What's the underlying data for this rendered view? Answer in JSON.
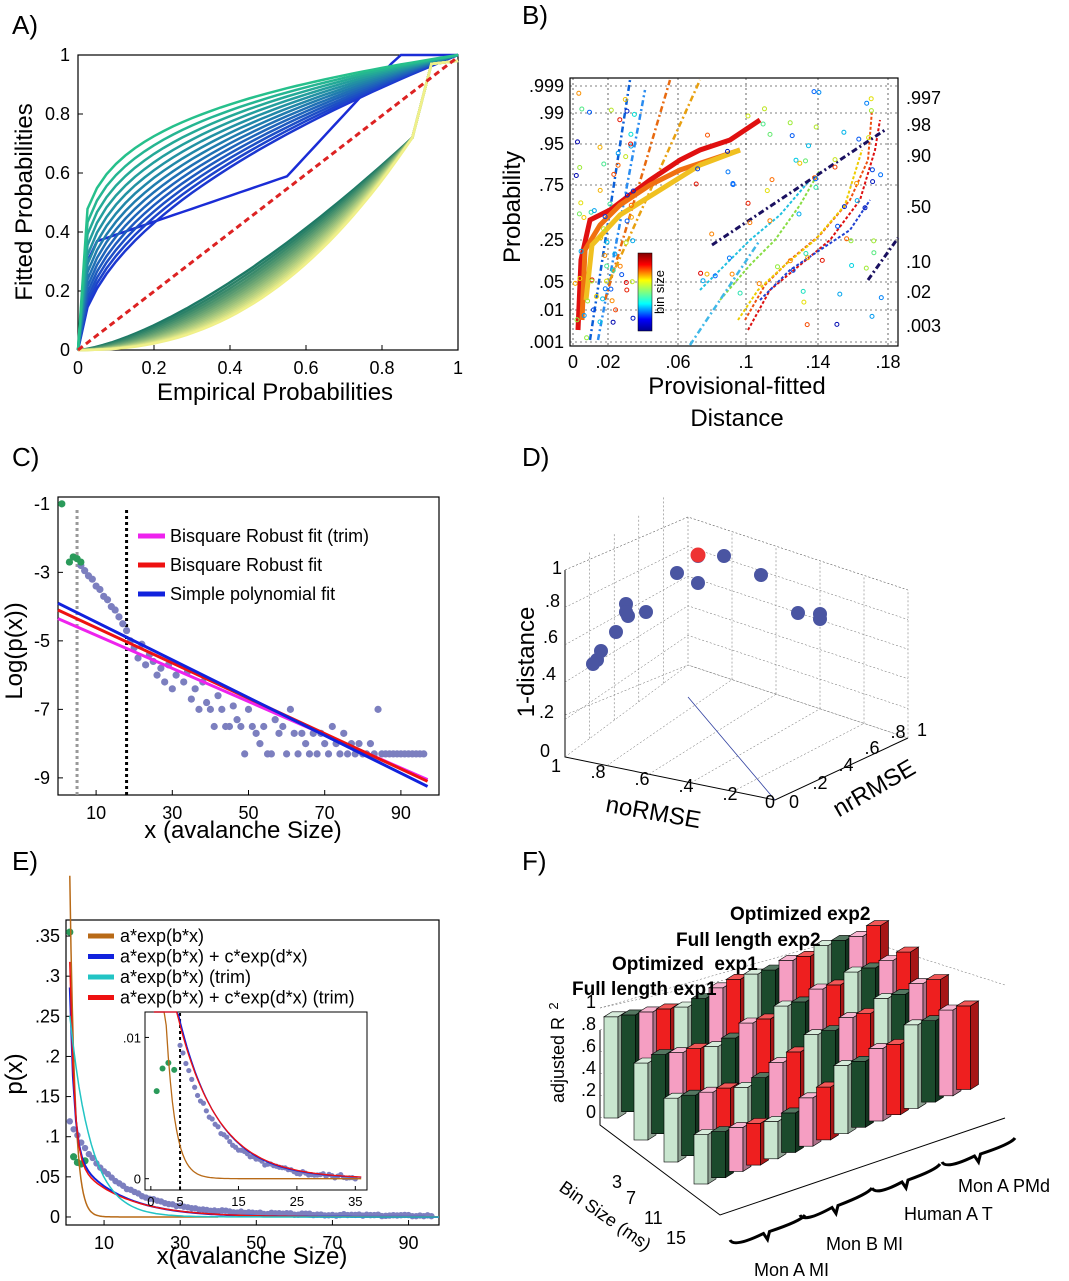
{
  "panels": {
    "A": {
      "label": "A)",
      "chart_data": {
        "type": "line",
        "xlabel": "Empirical Probabilities",
        "ylabel": "Fitted Probabilities",
        "xlim": [
          0,
          1
        ],
        "ylim": [
          0,
          1
        ],
        "xticks": [
          "0",
          "0.2",
          "0.4",
          "0.6",
          "0.8",
          "1"
        ],
        "yticks": [
          "0",
          "0.2",
          "0.4",
          "0.6",
          "0.8",
          "1"
        ],
        "reference_line": "y = x (red dashed)"
      }
    },
    "B": {
      "label": "B)",
      "chart_data": {
        "type": "scatter",
        "xlabel": "Provisional-fitted Distance",
        "xlabel_lines": [
          "Provisional-fitted",
          "Distance"
        ],
        "ylabel": "Probability",
        "xticks": [
          "0",
          ".02",
          ".06",
          ".1",
          ".14",
          ".18"
        ],
        "yticks_left": [
          ".001",
          ".01",
          ".05",
          ".25",
          ".75",
          ".95",
          ".99",
          ".999"
        ],
        "yticks_right": [
          ".003",
          ".02",
          ".10",
          ".50",
          ".90",
          ".98",
          ".997"
        ],
        "colorbar_label": "bin size"
      }
    },
    "C": {
      "label": "C)",
      "chart_data": {
        "type": "scatter",
        "xlabel": "x (avalanche Size)",
        "ylabel": "Log(p(x))",
        "xlim": [
          0,
          100
        ],
        "ylim": [
          -9.5,
          -0.8
        ],
        "xticks": [
          "10",
          "30",
          "50",
          "70",
          "90"
        ],
        "yticks": [
          "-1",
          "-3",
          "-5",
          "-7",
          "-9"
        ],
        "legend": [
          {
            "label": "Bisquare Robust fit (trim)",
            "color": "#ee22ee"
          },
          {
            "label": "Bisquare Robust fit",
            "color": "#ee1111"
          },
          {
            "label": "Simple polynomial fit",
            "color": "#1122dd"
          }
        ],
        "fits": [
          {
            "name": "Bisquare Robust fit (trim)",
            "x": [
              0,
              97
            ],
            "y": [
              -4.35,
              -9.05
            ]
          },
          {
            "name": "Bisquare Robust fit",
            "x": [
              0,
              97
            ],
            "y": [
              -4.1,
              -9.1
            ]
          },
          {
            "name": "Simple polynomial fit",
            "x": [
              0,
              97
            ],
            "y": [
              -3.9,
              -9.25
            ]
          }
        ],
        "vlines": [
          {
            "x": 5,
            "color": "#999999"
          },
          {
            "x": 18,
            "color": "#000000"
          }
        ],
        "trimmed_points": [
          [
            1,
            -1.0
          ],
          [
            3,
            -2.7
          ],
          [
            4,
            -2.55
          ],
          [
            5,
            -2.6
          ],
          [
            6,
            -2.7
          ]
        ],
        "points": [
          [
            6,
            -2.8
          ],
          [
            7,
            -2.95
          ],
          [
            8,
            -3.1
          ],
          [
            9,
            -3.2
          ],
          [
            10,
            -3.4
          ],
          [
            11,
            -3.5
          ],
          [
            12,
            -3.7
          ],
          [
            13,
            -3.8
          ],
          [
            14,
            -4.0
          ],
          [
            15,
            -4.1
          ],
          [
            16,
            -4.3
          ],
          [
            17,
            -4.5
          ],
          [
            18,
            -4.7
          ],
          [
            19,
            -5.0
          ],
          [
            20,
            -5.2
          ],
          [
            21,
            -5.5
          ],
          [
            22,
            -5.1
          ],
          [
            23,
            -5.7
          ],
          [
            24,
            -5.4
          ],
          [
            25,
            -5.6
          ],
          [
            26,
            -6.0
          ],
          [
            27,
            -5.8
          ],
          [
            28,
            -6.2
          ],
          [
            29,
            -5.7
          ],
          [
            30,
            -6.4
          ],
          [
            31,
            -6.0
          ],
          [
            33,
            -6.2
          ],
          [
            34,
            -5.9
          ],
          [
            35,
            -6.7
          ],
          [
            36,
            -6.4
          ],
          [
            37,
            -7.0
          ],
          [
            38,
            -6.2
          ],
          [
            39,
            -6.8
          ],
          [
            40,
            -7.0
          ],
          [
            41,
            -7.5
          ],
          [
            42,
            -6.6
          ],
          [
            43,
            -7.0
          ],
          [
            44,
            -7.5
          ],
          [
            45,
            -7.5
          ],
          [
            46,
            -6.9
          ],
          [
            47,
            -7.3
          ],
          [
            48,
            -7.5
          ],
          [
            49,
            -8.3
          ],
          [
            50,
            -7.0
          ],
          [
            51,
            -7.5
          ],
          [
            52,
            -7.7
          ],
          [
            53,
            -8.0
          ],
          [
            54,
            -7.5
          ],
          [
            55,
            -8.3
          ],
          [
            56,
            -8.3
          ],
          [
            57,
            -7.3
          ],
          [
            58,
            -7.7
          ],
          [
            59,
            -7.5
          ],
          [
            60,
            -8.3
          ],
          [
            61,
            -7.0
          ],
          [
            62,
            -7.7
          ],
          [
            63,
            -8.3
          ],
          [
            64,
            -7.7
          ],
          [
            65,
            -8.0
          ],
          [
            66,
            -8.3
          ],
          [
            67,
            -7.7
          ],
          [
            68,
            -8.3
          ],
          [
            69,
            -7.7
          ],
          [
            70,
            -8.0
          ],
          [
            71,
            -8.3
          ],
          [
            72,
            -7.5
          ],
          [
            73,
            -8.0
          ],
          [
            74,
            -8.3
          ],
          [
            75,
            -7.7
          ],
          [
            76,
            -8.3
          ],
          [
            77,
            -8.0
          ],
          [
            78,
            -8.3
          ],
          [
            79,
            -8.0
          ],
          [
            80,
            -8.3
          ],
          [
            81,
            -8.3
          ],
          [
            82,
            -8.0
          ],
          [
            83,
            -8.3
          ],
          [
            84,
            -7.0
          ],
          [
            85,
            -8.3
          ],
          [
            86,
            -8.3
          ],
          [
            87,
            -8.3
          ],
          [
            88,
            -8.3
          ],
          [
            89,
            -8.3
          ],
          [
            90,
            -8.3
          ],
          [
            91,
            -8.3
          ],
          [
            92,
            -8.3
          ],
          [
            93,
            -8.3
          ],
          [
            94,
            -8.3
          ],
          [
            95,
            -8.3
          ],
          [
            96,
            -8.3
          ]
        ]
      }
    },
    "D": {
      "label": "D)",
      "chart_data": {
        "type": "scatter",
        "zlabel": "1-distance",
        "xlabel": "noRMSE",
        "ylabel": "nrRMSE",
        "zticks": [
          "0",
          ".2",
          ".4",
          ".6",
          ".8",
          "1"
        ],
        "xticks": [
          "1",
          ".8",
          ".6",
          ".4",
          ".2",
          "0"
        ],
        "yticks": [
          "0",
          ".2",
          ".4",
          ".6",
          ".8",
          "1"
        ],
        "highlight_color": "#ee3333",
        "point_color": "#4a55a2"
      }
    },
    "E": {
      "label": "E)",
      "chart_data": {
        "type": "line",
        "xlabel": "x(avalanche Size)",
        "ylabel": "p(x)",
        "xlim": [
          0,
          98
        ],
        "ylim": [
          -0.01,
          0.37
        ],
        "xticks": [
          "10",
          "30",
          "50",
          "70",
          "90"
        ],
        "yticks": [
          "0",
          ".05",
          ".1",
          ".15",
          ".2",
          ".25",
          ".3",
          ".35"
        ],
        "legend": [
          {
            "label": "a*exp(b*x)",
            "color": "#b86a17"
          },
          {
            "label": "a*exp(b*x) + c*exp(d*x)",
            "color": "#1122dd"
          },
          {
            "label": "a*exp(b*x) (trim)",
            "color": "#22c4c4"
          },
          {
            "label": "a*exp(b*x) + c*exp(d*x) (trim)",
            "color": "#ee1111"
          }
        ],
        "inset": {
          "xticks": [
            "0",
            "5",
            "15",
            "25",
            "35"
          ],
          "yticks": [
            "0",
            ".01"
          ],
          "xlim": [
            -1,
            37
          ],
          "ylim": [
            -0.0008,
            0.0118
          ]
        }
      }
    },
    "F": {
      "label": "F)",
      "chart_data": {
        "type": "bar",
        "zlabel": "adjusted R",
        "zlabel_superscript": "2",
        "zticks": [
          "0",
          ".2",
          ".4",
          ".6",
          ".8",
          "1"
        ],
        "ylabel": "Bin Size (ms)",
        "bin_sizes": [
          "3",
          "7",
          "11",
          "15"
        ],
        "datasets": [
          "Mon A MI",
          "Mon B MI",
          "Human A T",
          "Mon A PMd"
        ],
        "series": [
          {
            "name": "Full length exp1",
            "color": "#c9e6cf"
          },
          {
            "name": "Optimized  exp1",
            "color": "#1b4a2c"
          },
          {
            "name": "Full length exp2",
            "color": "#f59ec2"
          },
          {
            "name": "Optimized exp2",
            "color": "#ee1f1f"
          }
        ]
      }
    }
  }
}
